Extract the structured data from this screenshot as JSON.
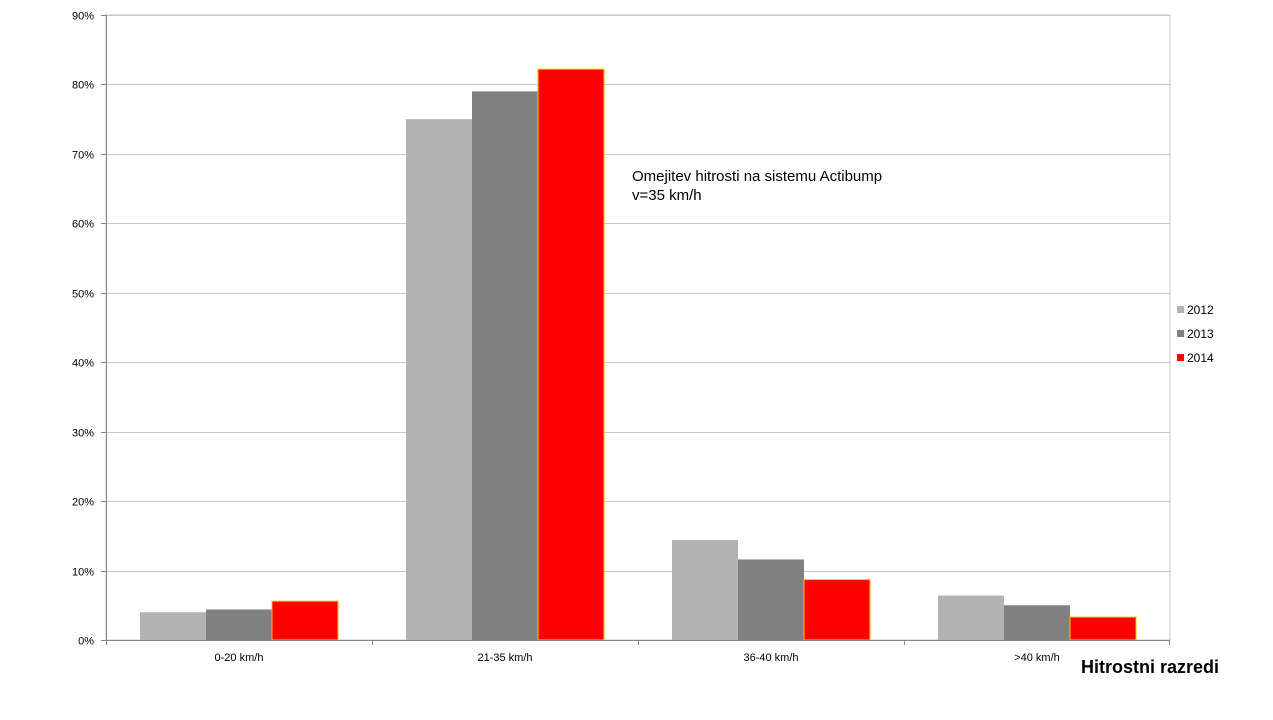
{
  "chart_data": {
    "type": "bar",
    "title": "",
    "xlabel": "Hitrostni razredi",
    "ylabel": "",
    "categories": [
      "0-20 km/h",
      "21-35 km/h",
      "36-40 km/h",
      ">40 km/h"
    ],
    "series": [
      {
        "name": "2012",
        "color": "#b3b3b3",
        "values": [
          4.0,
          75.0,
          14.4,
          6.4
        ]
      },
      {
        "name": "2013",
        "color": "#808080",
        "values": [
          4.4,
          79.0,
          11.6,
          5.0
        ]
      },
      {
        "name": "2014",
        "color": "#ff0000",
        "values": [
          5.6,
          82.2,
          8.7,
          3.3
        ]
      }
    ],
    "ylim": [
      0,
      90
    ],
    "yticks": [
      0,
      10,
      20,
      30,
      40,
      50,
      60,
      70,
      80,
      90
    ],
    "ytick_labels": [
      "0%",
      "10%",
      "20%",
      "30%",
      "40%",
      "50%",
      "60%",
      "70%",
      "80%",
      "90%"
    ],
    "grid": true,
    "legend_position": "right",
    "annotation": {
      "lines": [
        "Omejitev hitrosti na sistemu Actibump",
        "v=35 km/h"
      ]
    }
  }
}
